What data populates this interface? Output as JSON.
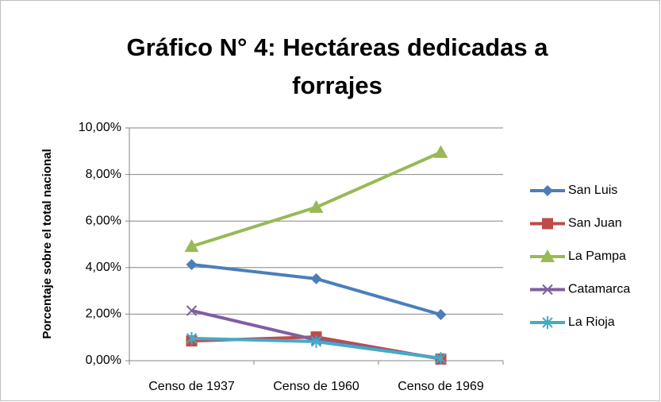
{
  "chart_data": {
    "type": "line",
    "title": "Gráfico N° 4: Hectáreas dedicadas a forrajes",
    "y_label": "Porcentaje sobre el total nacional",
    "categories": [
      "Censo de 1937",
      "Censo de 1960",
      "Censo de 1969"
    ],
    "series": [
      {
        "name": "San Luis",
        "color": "#4a7ebb",
        "marker": "diamond",
        "values": [
          4.13,
          3.52,
          1.98
        ]
      },
      {
        "name": "San Juan",
        "color": "#be4b48",
        "marker": "square",
        "values": [
          0.85,
          1.02,
          0.07
        ]
      },
      {
        "name": "La Pampa",
        "color": "#98b954",
        "marker": "triangle",
        "values": [
          4.91,
          6.59,
          8.95
        ]
      },
      {
        "name": "Catamarca",
        "color": "#7d60a0",
        "marker": "x",
        "values": [
          2.15,
          0.89,
          0.1
        ]
      },
      {
        "name": "La Rioja",
        "color": "#46aac5",
        "marker": "asterisk",
        "values": [
          0.96,
          0.82,
          0.1
        ]
      }
    ],
    "ylim": [
      0,
      10
    ],
    "yticks": [
      {
        "value": 0,
        "label": "0,00%"
      },
      {
        "value": 2,
        "label": "2,00%"
      },
      {
        "value": 4,
        "label": "4,00%"
      },
      {
        "value": 6,
        "label": "6,00%"
      },
      {
        "value": 8,
        "label": "8,00%"
      },
      {
        "value": 10,
        "label": "10,00%"
      }
    ],
    "grid": true,
    "legend": "right"
  }
}
